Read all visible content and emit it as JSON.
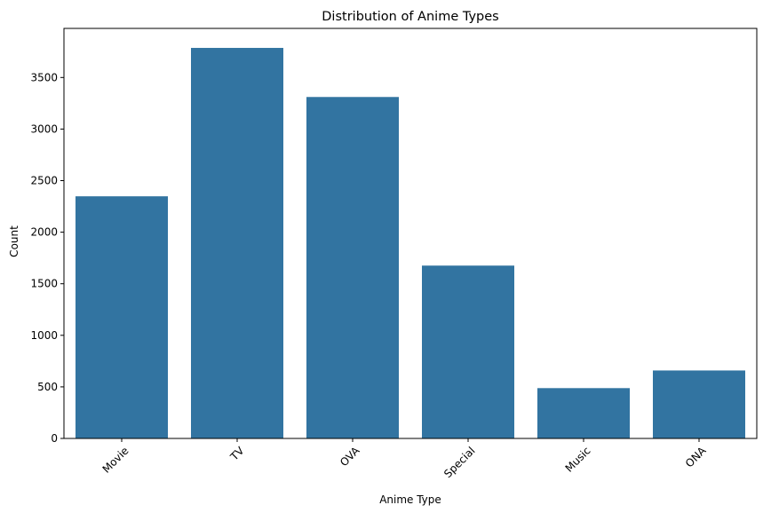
{
  "chart_data": {
    "type": "bar",
    "title": "Distribution of Anime Types",
    "xlabel": "Anime Type",
    "ylabel": "Count",
    "categories": [
      "Movie",
      "TV",
      "OVA",
      "Special",
      "Music",
      "ONA"
    ],
    "values": [
      2348,
      3787,
      3311,
      1676,
      488,
      659
    ],
    "ylim": [
      0,
      3976
    ],
    "yticks": [
      0,
      500,
      1000,
      1500,
      2000,
      2500,
      3000,
      3500
    ],
    "bar_color": "#3274a1",
    "grid": false,
    "legend": "none"
  }
}
